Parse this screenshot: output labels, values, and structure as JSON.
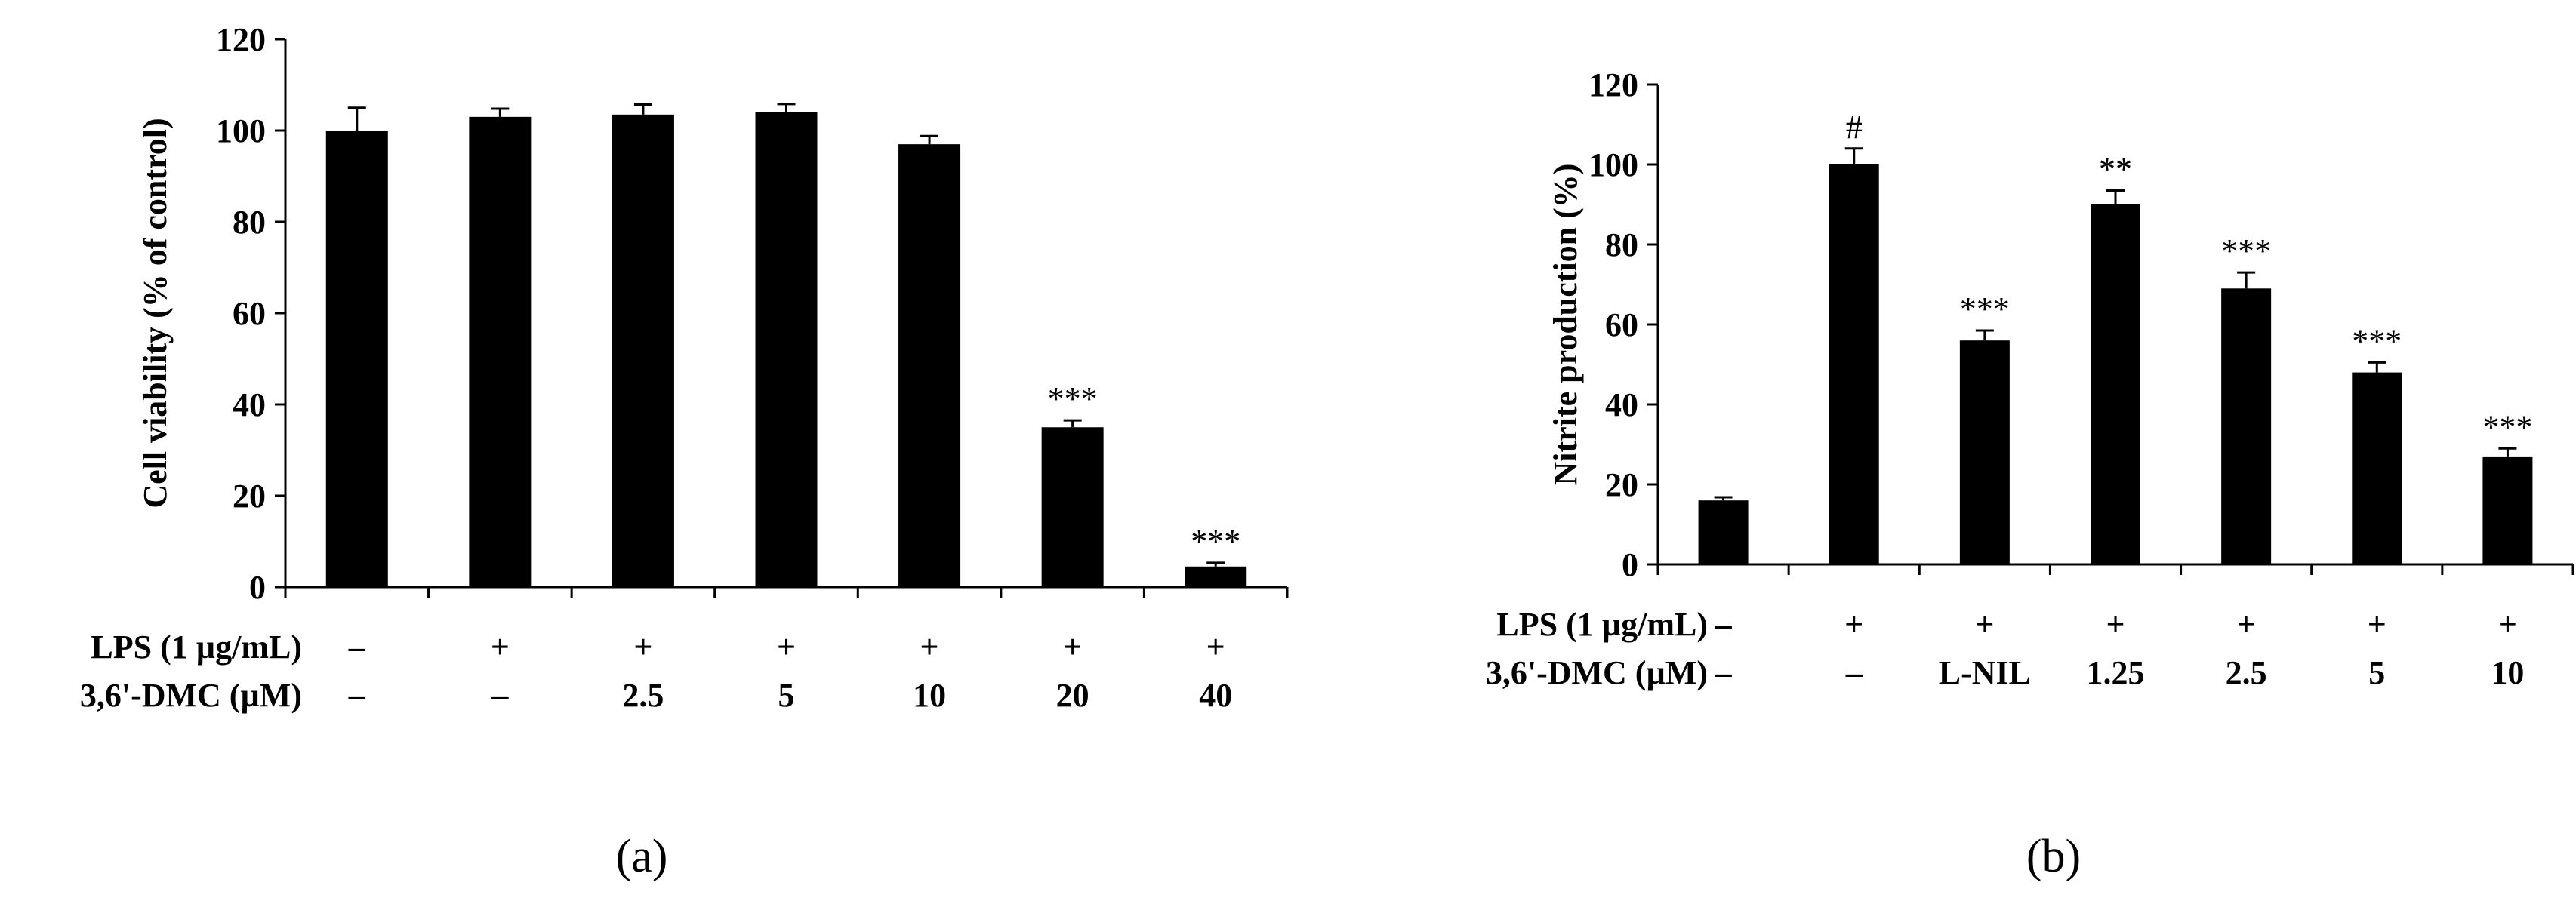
{
  "chart_data": [
    {
      "type": "bar",
      "panel_label": "(a)",
      "ylabel": "Cell viability (% of control)",
      "ylim": [
        0,
        120
      ],
      "yticks": [
        0,
        20,
        40,
        60,
        80,
        100,
        120
      ],
      "values": [
        100,
        103,
        103.5,
        104,
        97,
        35,
        4.5
      ],
      "errors": [
        5,
        1.8,
        2.2,
        1.8,
        1.8,
        1.5,
        0.8
      ],
      "significance": [
        "",
        "",
        "",
        "",
        "",
        "***",
        "***"
      ],
      "row_labels": [
        "LPS (1 µg/mL)",
        "3,6'-DMC (µM)"
      ],
      "conditions": [
        [
          "–",
          "+",
          "+",
          "+",
          "+",
          "+",
          "+"
        ],
        [
          "–",
          "–",
          "2.5",
          "5",
          "10",
          "20",
          "40"
        ]
      ],
      "color": "#000000"
    },
    {
      "type": "bar",
      "panel_label": "(b)",
      "ylabel": "Nitrite production (%)",
      "ylim": [
        0,
        120
      ],
      "yticks": [
        0,
        20,
        40,
        60,
        80,
        100,
        120
      ],
      "values": [
        16,
        100,
        56,
        90,
        69,
        48,
        27
      ],
      "errors": [
        0.8,
        4,
        2.5,
        3.5,
        4,
        2.5,
        2
      ],
      "significance": [
        "",
        "#",
        "***",
        "**",
        "***",
        "***",
        "***"
      ],
      "row_labels": [
        "LPS (1 µg/mL)",
        "3,6'-DMC (µM)"
      ],
      "conditions": [
        [
          "–",
          "+",
          "+",
          "+",
          "+",
          "+",
          "+"
        ],
        [
          "–",
          "–",
          "L-NIL",
          "1.25",
          "2.5",
          "5",
          "10"
        ]
      ],
      "color": "#000000"
    }
  ]
}
